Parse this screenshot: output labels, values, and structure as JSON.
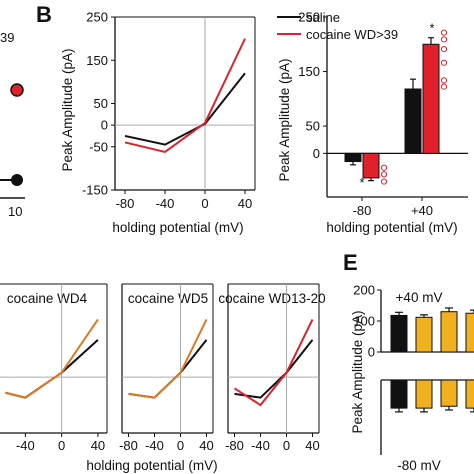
{
  "panel_letters": {
    "B": "B",
    "E": "E"
  },
  "partial_labels": {
    "a_top": "39",
    "a_tick": "10"
  },
  "colors": {
    "saline": "#111111",
    "cocaine_wd39": "#e0202a",
    "cocaine_wd4": "#e07820",
    "cocaine_wd5": "#e07820",
    "cocaine_wd13_20": "#e0202a",
    "bar_orange": "#f0b020",
    "gray_line": "#aaaaaa"
  },
  "legend": {
    "saline": "saline",
    "cocaine": "cocaine WD>39"
  },
  "chart_data": [
    {
      "id": "B_iv",
      "type": "line",
      "xlabel": "holding potential (mV)",
      "ylabel": "Peak Amplitude (pA)",
      "xlim": [
        -90,
        50
      ],
      "ylim": [
        -150,
        250
      ],
      "xticks": [
        "-80",
        "-40",
        "0",
        "40"
      ],
      "yticks": [
        "250",
        "150",
        "50",
        "0",
        "-50",
        "-150"
      ],
      "x": [
        -80,
        -40,
        0,
        40
      ],
      "series": [
        {
          "name": "saline",
          "values": [
            -25,
            -45,
            3,
            120
          ]
        },
        {
          "name": "cocaine WD>39",
          "values": [
            -40,
            -62,
            5,
            200
          ]
        }
      ]
    },
    {
      "id": "B_bar",
      "type": "bar",
      "xlabel": "holding potential (mV)",
      "ylabel": "Peak Amplitude (pA)",
      "ylim": [
        -80,
        250
      ],
      "yticks": [
        "250",
        "150",
        "50",
        "0"
      ],
      "categories": [
        "-80",
        "+40"
      ],
      "annotations": [
        "*",
        "*"
      ],
      "series": [
        {
          "name": "saline",
          "values": [
            -15,
            118
          ],
          "errors": [
            6,
            18
          ]
        },
        {
          "name": "cocaine WD>39",
          "values": [
            -45,
            200
          ],
          "errors": [
            5,
            12
          ]
        }
      ]
    },
    {
      "id": "D_wd4",
      "type": "line",
      "title": "cocaine WD4",
      "xlim": [
        -90,
        50
      ],
      "xticks": [
        "-80",
        "-40",
        "0",
        "40"
      ],
      "x": [
        -80,
        -40,
        0,
        40
      ],
      "series": [
        {
          "name": "saline",
          "values": [
            -30,
            -55,
            12,
            100
          ]
        },
        {
          "name": "cocaine WD4",
          "values": [
            -30,
            -55,
            12,
            155
          ]
        }
      ]
    },
    {
      "id": "D_wd5",
      "type": "line",
      "title": "cocaine WD5",
      "xlabel": "holding potential (mV)",
      "xlim": [
        -90,
        50
      ],
      "xticks": [
        "-80",
        "-40",
        "0",
        "40"
      ],
      "x": [
        -80,
        -40,
        0,
        40
      ],
      "series": [
        {
          "name": "saline",
          "values": [
            -45,
            -55,
            12,
            100
          ]
        },
        {
          "name": "cocaine WD5",
          "values": [
            -45,
            -55,
            12,
            155
          ]
        }
      ]
    },
    {
      "id": "D_wd13_20",
      "type": "line",
      "title": "cocaine WD13-20",
      "xlim": [
        -90,
        50
      ],
      "xticks": [
        "-80",
        "-40",
        "0",
        "40"
      ],
      "x": [
        -80,
        -40,
        0,
        40
      ],
      "series": [
        {
          "name": "saline",
          "values": [
            -45,
            -55,
            12,
            100
          ]
        },
        {
          "name": "cocaine WD13-20",
          "values": [
            -30,
            -75,
            12,
            155
          ]
        }
      ]
    },
    {
      "id": "E_bar",
      "type": "bar",
      "ylabel": "Peak Amplitude (pA)",
      "top_label": "+40 mV",
      "bottom_label": "-80 mV",
      "ylim_top": [
        0,
        200
      ],
      "yticks_top": [
        "200",
        "100",
        "0"
      ],
      "ylim_bottom": [
        -80,
        0
      ],
      "bar_fill_keys": [
        "saline",
        "bar_orange",
        "bar_orange",
        "bar_orange"
      ],
      "series": [
        {
          "name": "+40 mV",
          "values": [
            118,
            112,
            130,
            125
          ],
          "errors": [
            10,
            8,
            12,
            10
          ]
        },
        {
          "name": "-80 mV",
          "values": [
            -30,
            -30,
            -28,
            -30
          ],
          "errors": [
            4,
            4,
            4,
            4
          ]
        }
      ]
    }
  ]
}
